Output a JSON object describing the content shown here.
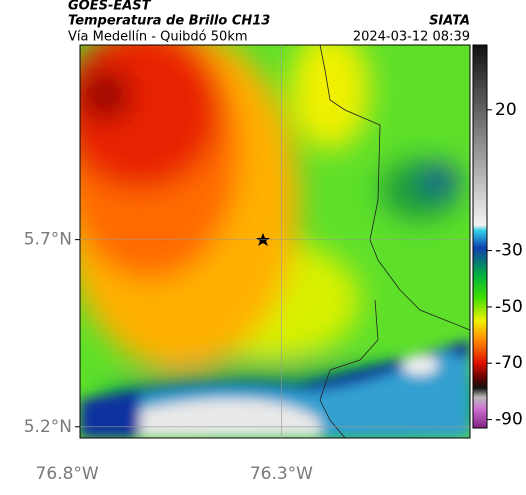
{
  "header": {
    "satellite": "GOES-EAST",
    "product": "Temperatura de Brillo CH13",
    "source": "SIATA",
    "region": "Vía Medellín - Quibdó 50km",
    "timestamp": "2024-03-12 08:39"
  },
  "map": {
    "xlim": [
      -76.77,
      -75.86
    ],
    "ylim": [
      5.17,
      6.22
    ],
    "lat_ticks": [
      {
        "value": 5.7,
        "label": "5.7°N"
      },
      {
        "value": 5.2,
        "label": "5.2°N"
      }
    ],
    "lon_ticks": [
      {
        "value": -76.8,
        "label": "76.8°W"
      },
      {
        "value": -76.3,
        "label": "76.3°W"
      }
    ]
  },
  "colorbar": {
    "range": [
      -93,
      43
    ],
    "ticks": [
      20,
      -30,
      -50,
      -70,
      -90
    ]
  }
}
